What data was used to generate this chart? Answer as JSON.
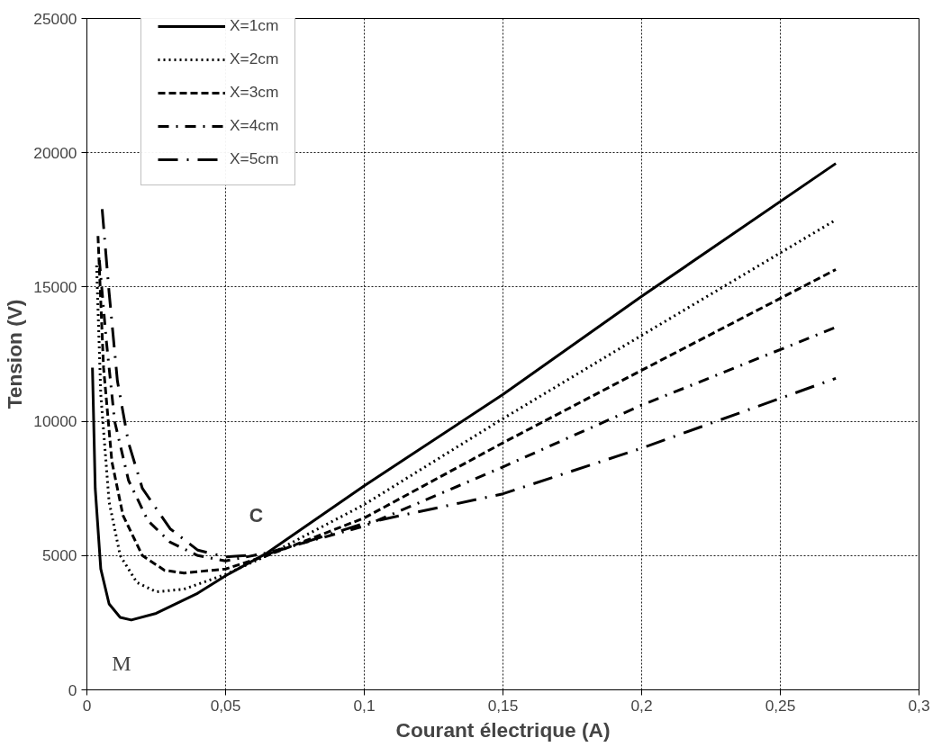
{
  "chart_data": {
    "type": "line",
    "xlabel": "Courant électrique (A)",
    "ylabel": "Tension (V)",
    "xlim": [
      0,
      0.3
    ],
    "ylim": [
      0,
      25000
    ],
    "xticks": [
      0,
      {
        "value": 0.05,
        "label": "0,05"
      },
      {
        "value": 0.1,
        "label": "0,1"
      },
      {
        "value": 0.15,
        "label": "0,15"
      },
      {
        "value": 0.2,
        "label": "0,2"
      },
      {
        "value": 0.25,
        "label": "0,25"
      },
      {
        "value": 0.3,
        "label": "0,3"
      }
    ],
    "yticks": [
      0,
      5000,
      10000,
      15000,
      20000,
      25000
    ],
    "grid": true,
    "legend": "top left",
    "series": [
      {
        "name": "X=1cm",
        "color": "#000000",
        "line_style": "solid",
        "x": [
          0.002,
          0.003,
          0.005,
          0.008,
          0.012,
          0.016,
          0.025,
          0.04,
          0.05,
          0.065,
          0.1,
          0.15,
          0.2,
          0.27
        ],
        "values": [
          12000,
          7500,
          4500,
          3200,
          2700,
          2600,
          2850,
          3600,
          4250,
          5100,
          7600,
          11000,
          14650,
          19600
        ]
      },
      {
        "name": "X=2cm",
        "color": "#000000",
        "line_style": "dotted",
        "x": [
          0.0035,
          0.005,
          0.008,
          0.012,
          0.018,
          0.025,
          0.035,
          0.05,
          0.065,
          0.1,
          0.15,
          0.2,
          0.27
        ],
        "values": [
          15800,
          11000,
          7000,
          5000,
          4000,
          3650,
          3750,
          4300,
          5000,
          6900,
          10100,
          13200,
          17500
        ]
      },
      {
        "name": "X=3cm",
        "color": "#000000",
        "line_style": "dashed",
        "x": [
          0.004,
          0.006,
          0.009,
          0.013,
          0.02,
          0.028,
          0.035,
          0.05,
          0.065,
          0.1,
          0.15,
          0.2,
          0.27
        ],
        "values": [
          16900,
          12000,
          8500,
          6500,
          5000,
          4450,
          4350,
          4500,
          5000,
          6400,
          9200,
          11900,
          15650
        ]
      },
      {
        "name": "X=4cm",
        "color": "#000000",
        "line_style": "dashdot",
        "x": [
          0.0045,
          0.007,
          0.01,
          0.015,
          0.022,
          0.03,
          0.04,
          0.05,
          0.065,
          0.1,
          0.15,
          0.2,
          0.27
        ],
        "values": [
          16000,
          13000,
          10000,
          7800,
          6300,
          5500,
          5000,
          4800,
          5100,
          6100,
          8300,
          10600,
          13500
        ]
      },
      {
        "name": "X=5cm",
        "color": "#000000",
        "line_style": "longdashdot",
        "x": [
          0.0055,
          0.008,
          0.011,
          0.015,
          0.02,
          0.03,
          0.04,
          0.05,
          0.065,
          0.1,
          0.15,
          0.2,
          0.27
        ],
        "values": [
          17900,
          14800,
          11500,
          9200,
          7500,
          6000,
          5200,
          4950,
          5050,
          6200,
          7300,
          9000,
          11600
        ]
      }
    ],
    "annotations": [
      "M",
      "C"
    ]
  }
}
